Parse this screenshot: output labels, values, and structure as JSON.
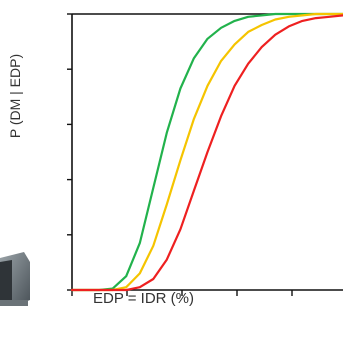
{
  "chart_data": {
    "type": "line",
    "title": "",
    "xlabel": "EDP  = IDR (%)",
    "ylabel": "P (DM | EDP)",
    "ylim": [
      0,
      1
    ],
    "grid": false,
    "legend": "none",
    "x_ticks_count": 6,
    "y_ticks_count": 6,
    "series": [
      {
        "color": "#22b24c",
        "x": [
          0.0,
          0.1,
          0.15,
          0.2,
          0.25,
          0.3,
          0.35,
          0.4,
          0.45,
          0.5,
          0.55,
          0.6,
          0.65,
          0.7,
          0.75,
          0.8,
          0.85,
          0.9,
          0.95,
          1.0
        ],
        "values": [
          0.0,
          0.0,
          0.005,
          0.05,
          0.17,
          0.37,
          0.57,
          0.73,
          0.84,
          0.91,
          0.95,
          0.975,
          0.99,
          0.995,
          1.0,
          1.0,
          1.0,
          1.0,
          1.0,
          1.0
        ]
      },
      {
        "color": "#f5c400",
        "x": [
          0.0,
          0.1,
          0.15,
          0.2,
          0.25,
          0.3,
          0.35,
          0.4,
          0.45,
          0.5,
          0.55,
          0.6,
          0.65,
          0.7,
          0.75,
          0.8,
          0.85,
          0.9,
          0.95,
          1.0
        ],
        "values": [
          0.0,
          0.0,
          0.0,
          0.01,
          0.06,
          0.16,
          0.31,
          0.47,
          0.62,
          0.74,
          0.83,
          0.89,
          0.935,
          0.96,
          0.98,
          0.99,
          0.995,
          1.0,
          1.0,
          1.0
        ]
      },
      {
        "color": "#ee2020",
        "x": [
          0.0,
          0.1,
          0.15,
          0.2,
          0.25,
          0.3,
          0.35,
          0.4,
          0.45,
          0.5,
          0.55,
          0.6,
          0.65,
          0.7,
          0.75,
          0.8,
          0.85,
          0.9,
          0.95,
          1.0
        ],
        "values": [
          0.0,
          0.0,
          0.0,
          0.0,
          0.01,
          0.04,
          0.11,
          0.22,
          0.36,
          0.5,
          0.63,
          0.74,
          0.82,
          0.88,
          0.925,
          0.955,
          0.975,
          0.985,
          0.99,
          0.995
        ]
      }
    ]
  }
}
